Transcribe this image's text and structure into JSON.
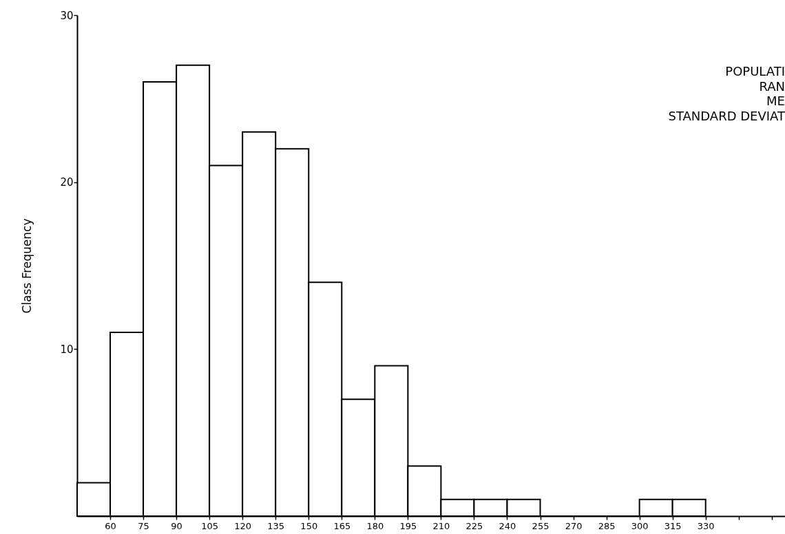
{
  "chart_data": {
    "type": "histogram",
    "ylabel": "Class Frequency",
    "bins": [
      45,
      60,
      75,
      90,
      105,
      120,
      135,
      150,
      165,
      180,
      195,
      210,
      225,
      240,
      255,
      270,
      285,
      300,
      315,
      330
    ],
    "values": [
      2,
      11,
      26,
      27,
      21,
      23,
      22,
      14,
      7,
      9,
      3,
      1,
      1,
      1,
      0,
      0,
      0,
      1,
      1
    ],
    "color": "#ffffff",
    "xlim": [
      45,
      366
    ],
    "ylim": [
      0,
      30
    ],
    "xticks": [
      60,
      75,
      90,
      105,
      120,
      135,
      150,
      165,
      180,
      195,
      210,
      225,
      240,
      255,
      270,
      285,
      300,
      315,
      330,
      {
        "value": 345,
        "label": null
      },
      {
        "value": 360,
        "label": null
      }
    ],
    "yticks": [
      10,
      20,
      30
    ],
    "grid": false,
    "annotations": [
      "POPULATI",
      "RAN",
      "ME",
      "STANDARD DEVIAT"
    ]
  }
}
